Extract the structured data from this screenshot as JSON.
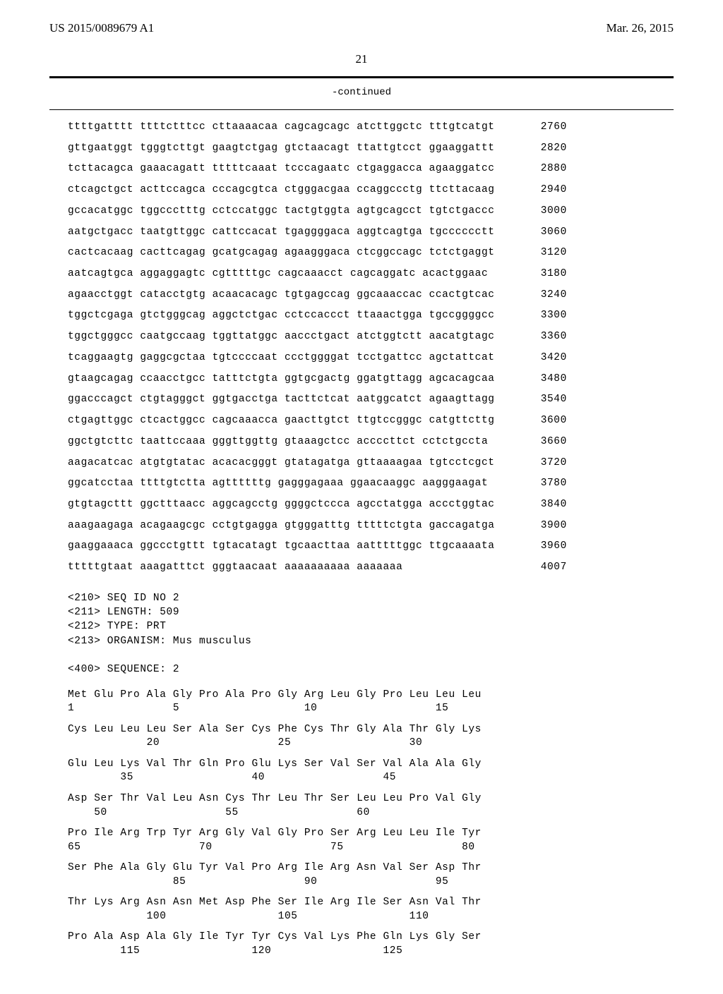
{
  "header": {
    "pubnum": "US 2015/0089679 A1",
    "date": "Mar. 26, 2015"
  },
  "page_number": "21",
  "continued_label": "-continued",
  "dna_lines": [
    {
      "seq": "ttttgatttt ttttctttcc cttaaaacaa cagcagcagc atcttggctc tttgtcatgt",
      "pos": "2760"
    },
    {
      "seq": "gttgaatggt tgggtcttgt gaagtctgag gtctaacagt ttattgtcct ggaaggattt",
      "pos": "2820"
    },
    {
      "seq": "tcttacagca gaaacagatt tttttcaaat tcccagaatc ctgaggacca agaaggatcc",
      "pos": "2880"
    },
    {
      "seq": "ctcagctgct acttccagca cccagcgtca ctgggacgaa ccaggccctg ttcttacaag",
      "pos": "2940"
    },
    {
      "seq": "gccacatggc tggccctttg cctccatggc tactgtggta agtgcagcct tgtctgaccc",
      "pos": "3000"
    },
    {
      "seq": "aatgctgacc taatgttggc cattccacat tgaggggaca aggtcagtga tgcccccctt",
      "pos": "3060"
    },
    {
      "seq": "cactcacaag cacttcagag gcatgcagag agaagggaca ctcggccagc tctctgaggt",
      "pos": "3120"
    },
    {
      "seq": "aatcagtgca aggaggagtc cgtttttgc cagcaaacct cagcaggatc acactggaac",
      "pos": "3180"
    },
    {
      "seq": "agaacctggt catacctgtg acaacacagc tgtgagccag ggcaaaccac ccactgtcac",
      "pos": "3240"
    },
    {
      "seq": "tggctcgaga gtctgggcag aggctctgac cctccaccct ttaaactgga tgccggggcc",
      "pos": "3300"
    },
    {
      "seq": "tggctgggcc caatgccaag tggttatggc aaccctgact atctggtctt aacatgtagc",
      "pos": "3360"
    },
    {
      "seq": "tcaggaagtg gaggcgctaa tgtccccaat ccctggggat tcctgattcc agctattcat",
      "pos": "3420"
    },
    {
      "seq": "gtaagcagag ccaacctgcc tatttctgta ggtgcgactg ggatgttagg agcacagcaa",
      "pos": "3480"
    },
    {
      "seq": "ggacccagct ctgtagggct ggtgacctga tacttctcat aatggcatct agaagttagg",
      "pos": "3540"
    },
    {
      "seq": "ctgagttggc ctcactggcc cagcaaacca gaacttgtct ttgtccgggc catgttcttg",
      "pos": "3600"
    },
    {
      "seq": "ggctgtcttc taattccaaa gggttggttg gtaaagctcc accccttct cctctgccta",
      "pos": "3660"
    },
    {
      "seq": "aagacatcac atgtgtatac acacacgggt gtatagatga gttaaaagaa tgtcctcgct",
      "pos": "3720"
    },
    {
      "seq": "ggcatcctaa ttttgtctta agttttttg gagggagaaa ggaacaaggc aagggaagat",
      "pos": "3780"
    },
    {
      "seq": "gtgtagcttt ggctttaacc aggcagcctg ggggctccca agcctatgga accctggtac",
      "pos": "3840"
    },
    {
      "seq": "aaagaagaga acagaagcgc cctgtgagga gtgggatttg tttttctgta gaccagatga",
      "pos": "3900"
    },
    {
      "seq": "gaaggaaaca ggccctgttt tgtacatagt tgcaacttaa aatttttggc ttgcaaaata",
      "pos": "3960"
    },
    {
      "seq": "tttttgtaat aaagatttct gggtaacaat aaaaaaaaaa aaaaaaa",
      "pos": "4007"
    }
  ],
  "meta": [
    "<210> SEQ ID NO 2",
    "<211> LENGTH: 509",
    "<212> TYPE: PRT",
    "<213> ORGANISM: Mus musculus",
    "",
    "<400> SEQUENCE: 2"
  ],
  "protein": [
    {
      "aa": "Met Glu Pro Ala Gly Pro Ala Pro Gly Arg Leu Gly Pro Leu Leu Leu",
      "num": "1               5                   10                  15"
    },
    {
      "aa": "Cys Leu Leu Leu Ser Ala Ser Cys Phe Cys Thr Gly Ala Thr Gly Lys",
      "num": "            20                  25                  30"
    },
    {
      "aa": "Glu Leu Lys Val Thr Gln Pro Glu Lys Ser Val Ser Val Ala Ala Gly",
      "num": "        35                  40                  45"
    },
    {
      "aa": "Asp Ser Thr Val Leu Asn Cys Thr Leu Thr Ser Leu Leu Pro Val Gly",
      "num": "    50                  55                  60"
    },
    {
      "aa": "Pro Ile Arg Trp Tyr Arg Gly Val Gly Pro Ser Arg Leu Leu Ile Tyr",
      "num": "65                  70                  75                  80"
    },
    {
      "aa": "Ser Phe Ala Gly Glu Tyr Val Pro Arg Ile Arg Asn Val Ser Asp Thr",
      "num": "                85                  90                  95"
    },
    {
      "aa": "Thr Lys Arg Asn Asn Met Asp Phe Ser Ile Arg Ile Ser Asn Val Thr",
      "num": "            100                 105                 110"
    },
    {
      "aa": "Pro Ala Asp Ala Gly Ile Tyr Tyr Cys Val Lys Phe Gln Lys Gly Ser",
      "num": "        115                 120                 125"
    }
  ]
}
